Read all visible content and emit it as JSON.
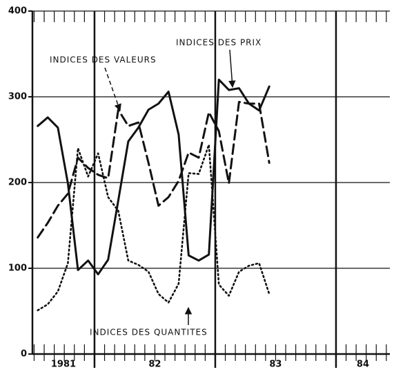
{
  "chart_data": {
    "type": "line",
    "x": [
      1981.53,
      1981.613,
      1981.697,
      1981.78,
      1981.863,
      1981.947,
      1982.03,
      1982.113,
      1982.197,
      1982.28,
      1982.363,
      1982.447,
      1982.53,
      1982.613,
      1982.697,
      1982.78,
      1982.863,
      1982.947,
      1983.03,
      1983.113,
      1983.197,
      1983.28,
      1983.363,
      1983.447
    ],
    "series": [
      {
        "name": "INDICES DES PRIX",
        "color": "#111111",
        "dash": "solid",
        "values": [
          266,
          276,
          264,
          199,
          98,
          109,
          93,
          110,
          179,
          248,
          264,
          285,
          292,
          306,
          256,
          115,
          109,
          116,
          320,
          308,
          310,
          292,
          284,
          312
        ]
      },
      {
        "name": "INDICES DES VALEURS",
        "color": "#111111",
        "dash": "dashed",
        "values": [
          136,
          153,
          173,
          187,
          229,
          217,
          209,
          205,
          285,
          266,
          270,
          223,
          173,
          183,
          202,
          235,
          229,
          282,
          260,
          199,
          294,
          292,
          292,
          223
        ]
      },
      {
        "name": "INDICES DES QUANTITES",
        "color": "#111111",
        "dash": "dotted",
        "values": [
          51,
          58,
          73,
          106,
          240,
          207,
          234,
          183,
          167,
          109,
          104,
          96,
          70,
          60,
          82,
          211,
          210,
          244,
          81,
          68,
          96,
          103,
          106,
          70
        ]
      }
    ],
    "xlim": [
      1981.486,
      1984.446
    ],
    "xticks": [
      {
        "value": 1981,
        "label": "1981"
      },
      {
        "value": 1982,
        "label": "82"
      },
      {
        "value": 1983,
        "label": "83"
      },
      {
        "value": 1984,
        "label": "84"
      }
    ],
    "ylim": [
      0,
      400
    ],
    "yticks": [
      0,
      100,
      200,
      300,
      400
    ],
    "grid": true
  }
}
